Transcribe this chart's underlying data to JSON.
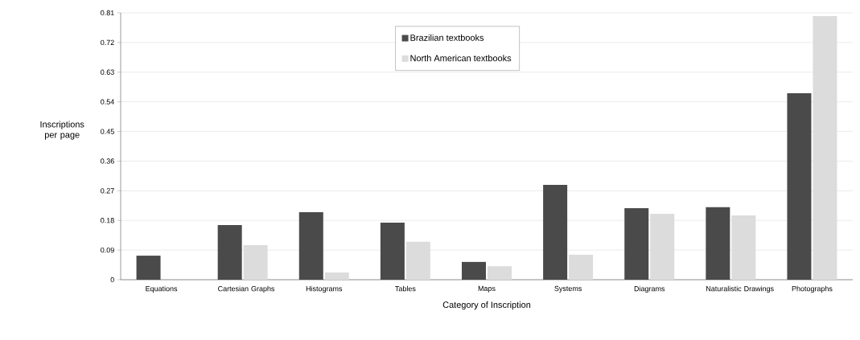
{
  "chart_data": {
    "type": "bar",
    "categories": [
      "Equations",
      "Cartesian Graphs",
      "Histograms",
      "Tables",
      "Maps",
      "Systems",
      "Diagrams",
      "Naturalistic Drawings",
      "Photographs"
    ],
    "series": [
      {
        "name": "Brazilian textbooks",
        "color": "#4a4a4a",
        "values": [
          0.073,
          0.166,
          0.205,
          0.173,
          0.054,
          0.288,
          0.217,
          0.22,
          0.566
        ]
      },
      {
        "name": "North American textbooks",
        "color": "#dcdcdc",
        "values": [
          null,
          0.105,
          0.022,
          0.115,
          0.041,
          0.076,
          0.2,
          0.195,
          0.8
        ]
      }
    ],
    "xlabel": "Category of Inscription",
    "ylabel": "Inscriptions per page",
    "ylim": [
      0,
      0.81
    ],
    "yticks": [
      0,
      0.09,
      0.18,
      0.27,
      0.36,
      0.45,
      0.54,
      0.63,
      0.72,
      0.81
    ],
    "grid": "y",
    "legend": "top"
  }
}
